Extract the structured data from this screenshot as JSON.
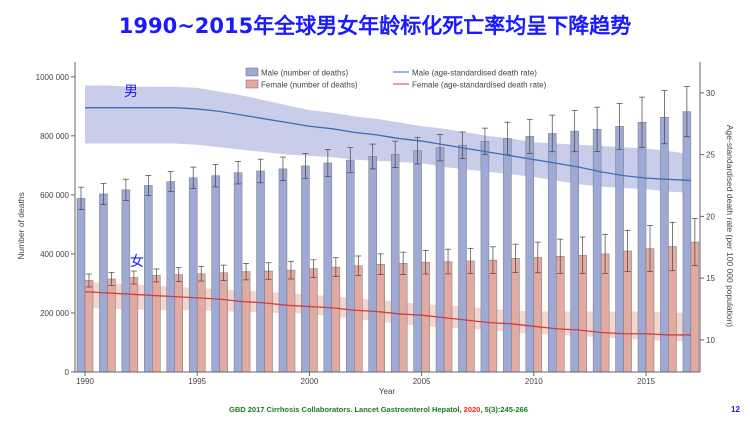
{
  "slide": {
    "title": "1990~2015年全球男女年龄标化死亡率均呈下降趋势",
    "citation_pre": "GBD 2017 Cirrhosis Collaborators. Lancet Gastroenterol Hepatol, ",
    "citation_year": "2020",
    "citation_post": ", 5(3):245-266",
    "page_number": "12",
    "annotation_male": "男",
    "annotation_female": "女",
    "annotation_color": "#1a1aff"
  },
  "chart_data": {
    "type": "bar+line",
    "xlabel": "Year",
    "ylabel": "Number of deaths",
    "y2label": "Age-standardised death rate (per 100 000 population)",
    "ylim": [
      0,
      1050000
    ],
    "y2lim": [
      7.4,
      32.5
    ],
    "yticks": [
      0,
      200000,
      400000,
      600000,
      800000,
      1000000
    ],
    "ytick_labels": [
      "0",
      "200 000",
      "400 000",
      "600 000",
      "800 000",
      "1000 000"
    ],
    "y2ticks": [
      10,
      15,
      20,
      25,
      30
    ],
    "xticks": [
      1990,
      1995,
      2000,
      2005,
      2010,
      2015
    ],
    "grid": false,
    "legend_position": "top",
    "colors": {
      "male_bar": "#9fa9d6",
      "female_bar": "#e3aaa2",
      "male_line": "#3a6fb8",
      "female_line": "#c8423e",
      "male_band": "#c3c8e8",
      "female_band": "#f3d2cc"
    },
    "years": [
      1990,
      1991,
      1992,
      1993,
      1994,
      1995,
      1996,
      1997,
      1998,
      1999,
      2000,
      2001,
      2002,
      2003,
      2004,
      2005,
      2006,
      2007,
      2008,
      2009,
      2010,
      2011,
      2012,
      2013,
      2014,
      2015,
      2016,
      2017
    ],
    "series": [
      {
        "name": "Male (number of deaths)",
        "kind": "bar",
        "axis": "left",
        "values": [
          588000,
          603000,
          617000,
          632000,
          645000,
          658000,
          665000,
          675000,
          681000,
          688000,
          698000,
          708000,
          718000,
          730000,
          737000,
          750000,
          760000,
          768000,
          781000,
          791000,
          798000,
          808000,
          816000,
          822000,
          832000,
          846000,
          863000,
          882000
        ],
        "error": [
          38000,
          36000,
          36000,
          34000,
          34000,
          36000,
          38000,
          38000,
          40000,
          40000,
          42000,
          46000,
          42000,
          42000,
          45000,
          45000,
          45000,
          45000,
          45000,
          55000,
          58000,
          62000,
          70000,
          75000,
          78000,
          85000,
          90000,
          85000
        ]
      },
      {
        "name": "Female (number of deaths)",
        "kind": "bar",
        "axis": "left",
        "values": [
          310000,
          315000,
          320000,
          327000,
          330000,
          333000,
          336000,
          340000,
          342000,
          345000,
          350000,
          355000,
          360000,
          365000,
          368000,
          372000,
          374000,
          376000,
          379000,
          385000,
          388000,
          392000,
          395000,
          400000,
          410000,
          418000,
          425000,
          440000
        ],
        "error": [
          22000,
          22000,
          22000,
          22000,
          24000,
          25000,
          26000,
          28000,
          28000,
          30000,
          30000,
          32000,
          33000,
          35000,
          38000,
          40000,
          42000,
          43000,
          45000,
          48000,
          52000,
          58000,
          62000,
          66000,
          70000,
          78000,
          82000,
          80000
        ]
      },
      {
        "name": "Male (age-standardised death rate)",
        "kind": "line",
        "axis": "right",
        "values": [
          28.8,
          28.8,
          28.8,
          28.8,
          28.8,
          28.7,
          28.5,
          28.2,
          27.9,
          27.6,
          27.3,
          27.1,
          26.8,
          26.6,
          26.3,
          26.1,
          25.8,
          25.5,
          25.2,
          24.9,
          24.6,
          24.3,
          24.0,
          23.6,
          23.3,
          23.1,
          23.0,
          22.9
        ],
        "lower": [
          25.9,
          25.9,
          25.9,
          25.9,
          25.9,
          25.8,
          25.6,
          25.4,
          25.2,
          25.0,
          24.9,
          24.8,
          24.6,
          24.5,
          24.4,
          24.3,
          24.0,
          23.8,
          23.6,
          23.4,
          23.2,
          22.9,
          22.6,
          22.4,
          22.3,
          22.2,
          22.0,
          21.9
        ],
        "upper": [
          30.6,
          30.6,
          30.5,
          30.5,
          30.5,
          30.4,
          30.1,
          29.8,
          29.4,
          29.0,
          28.6,
          28.4,
          28.1,
          27.9,
          27.6,
          27.3,
          27.1,
          26.8,
          26.5,
          26.3,
          26.0,
          25.9,
          25.8,
          25.7,
          25.6,
          25.5,
          25.3,
          25.0
        ]
      },
      {
        "name": "Female (age-standardised death rate)",
        "kind": "line",
        "axis": "right",
        "values": [
          13.9,
          13.8,
          13.7,
          13.6,
          13.5,
          13.4,
          13.3,
          13.1,
          13.0,
          12.8,
          12.7,
          12.6,
          12.4,
          12.3,
          12.1,
          12.0,
          11.8,
          11.6,
          11.4,
          11.3,
          11.1,
          10.9,
          10.8,
          10.6,
          10.5,
          10.5,
          10.4,
          10.4
        ],
        "lower": [
          12.6,
          12.5,
          12.5,
          12.4,
          12.4,
          12.4,
          12.3,
          12.3,
          12.2,
          12.2,
          12.1,
          11.9,
          11.7,
          11.5,
          11.3,
          11.1,
          11.0,
          10.9,
          10.8,
          10.6,
          10.5,
          10.4,
          10.3,
          10.2,
          10.1,
          10.0,
          9.9,
          9.9
        ],
        "upper": [
          14.7,
          14.6,
          14.5,
          14.4,
          14.3,
          14.2,
          14.1,
          14.0,
          13.9,
          13.8,
          13.7,
          13.5,
          13.4,
          13.2,
          13.1,
          12.9,
          12.8,
          12.7,
          12.5,
          12.4,
          12.3,
          12.3,
          12.3,
          12.3,
          12.3,
          12.3,
          12.2,
          12.2
        ]
      }
    ]
  }
}
